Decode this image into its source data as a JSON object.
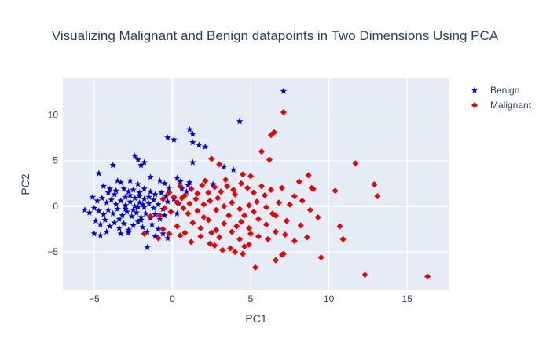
{
  "chart_data": {
    "type": "scatter",
    "title": "Visualizing Malignant and Benign datapoints in Two Dimensions Using PCA",
    "xlabel": "PC1",
    "ylabel": "PC2",
    "xlim": [
      -7,
      17.7
    ],
    "ylim": [
      -9.2,
      14
    ],
    "xticks": [
      -5,
      0,
      5,
      10,
      15
    ],
    "yticks": [
      -5,
      0,
      5,
      10
    ],
    "grid": true,
    "legend_position": "top-right",
    "series": [
      {
        "name": "Benign",
        "marker": "star",
        "color": "#0000dd",
        "points": [
          [
            7.1,
            12.6
          ],
          [
            4.3,
            9.3
          ],
          [
            1.1,
            8.4
          ],
          [
            1.3,
            7.9
          ],
          [
            -0.3,
            7.5
          ],
          [
            0.1,
            7.3
          ],
          [
            1.3,
            7.0
          ],
          [
            1.7,
            6.7
          ],
          [
            2.1,
            6.5
          ],
          [
            -2.4,
            5.5
          ],
          [
            -2.2,
            5.1
          ],
          [
            -1.8,
            4.8
          ],
          [
            -2.0,
            4.5
          ],
          [
            1.3,
            4.8
          ],
          [
            3.3,
            4.3
          ],
          [
            3.9,
            4.0
          ],
          [
            -3.8,
            4.5
          ],
          [
            -4.7,
            3.6
          ],
          [
            -3.5,
            2.8
          ],
          [
            -3.3,
            2.6
          ],
          [
            -2.7,
            2.8
          ],
          [
            -2.2,
            2.4
          ],
          [
            -1.4,
            3.2
          ],
          [
            -0.8,
            2.8
          ],
          [
            -0.5,
            2.5
          ],
          [
            0.3,
            3.1
          ],
          [
            0.5,
            2.7
          ],
          [
            1.0,
            2.3
          ],
          [
            1.1,
            2.6
          ],
          [
            -0.2,
            2.0
          ],
          [
            -4.4,
            2.2
          ],
          [
            -4.0,
            1.9
          ],
          [
            -3.6,
            1.7
          ],
          [
            -3.1,
            1.9
          ],
          [
            -2.8,
            1.6
          ],
          [
            -2.5,
            1.8
          ],
          [
            -2.1,
            1.5
          ],
          [
            -1.8,
            1.9
          ],
          [
            -1.4,
            1.6
          ],
          [
            -1.1,
            1.3
          ],
          [
            -0.7,
            1.5
          ],
          [
            -0.4,
            1.1
          ],
          [
            -5.1,
            1.0
          ],
          [
            -4.8,
            0.6
          ],
          [
            -4.5,
            0.9
          ],
          [
            -4.2,
            0.4
          ],
          [
            -3.9,
            0.7
          ],
          [
            -3.6,
            0.2
          ],
          [
            -3.3,
            0.6
          ],
          [
            -3.0,
            0.1
          ],
          [
            -2.7,
            0.5
          ],
          [
            -2.4,
            0.0
          ],
          [
            -2.1,
            0.4
          ],
          [
            -1.8,
            -0.1
          ],
          [
            -1.5,
            0.3
          ],
          [
            -1.2,
            -0.2
          ],
          [
            -0.9,
            0.2
          ],
          [
            -0.6,
            -0.3
          ],
          [
            -0.3,
            0.5
          ],
          [
            0.1,
            0.8
          ],
          [
            0.4,
            0.3
          ],
          [
            -5.6,
            -0.4
          ],
          [
            -5.3,
            -0.7
          ],
          [
            -5.0,
            -0.2
          ],
          [
            -4.7,
            -0.5
          ],
          [
            -4.4,
            -0.9
          ],
          [
            -4.1,
            -0.4
          ],
          [
            -3.8,
            -0.8
          ],
          [
            -3.5,
            -0.3
          ],
          [
            -3.2,
            -1.0
          ],
          [
            -2.9,
            -0.6
          ],
          [
            -2.6,
            -1.1
          ],
          [
            -2.3,
            -0.7
          ],
          [
            -2.0,
            -1.2
          ],
          [
            -1.7,
            -0.8
          ],
          [
            -1.4,
            -1.3
          ],
          [
            -1.1,
            -0.9
          ],
          [
            -0.8,
            -1.4
          ],
          [
            -0.5,
            -1.0
          ],
          [
            -4.9,
            -1.6
          ],
          [
            -4.6,
            -2.0
          ],
          [
            -4.3,
            -1.5
          ],
          [
            -4.0,
            -2.2
          ],
          [
            -3.7,
            -1.8
          ],
          [
            -3.4,
            -2.4
          ],
          [
            -3.1,
            -1.9
          ],
          [
            -2.8,
            -2.6
          ],
          [
            -2.5,
            -2.1
          ],
          [
            -2.2,
            -1.7
          ],
          [
            -1.9,
            -2.3
          ],
          [
            -1.6,
            -2.8
          ],
          [
            -1.3,
            -2.0
          ],
          [
            -0.9,
            -2.5
          ],
          [
            -0.6,
            -3.0
          ],
          [
            -5.0,
            -3.0
          ],
          [
            -4.6,
            -3.2
          ],
          [
            -4.2,
            -2.8
          ],
          [
            -3.3,
            -3.0
          ],
          [
            -2.8,
            -2.9
          ],
          [
            -1.6,
            -4.5
          ],
          [
            -1.1,
            -3.3
          ],
          [
            -0.3,
            -3.5
          ],
          [
            -3.0,
            1.0
          ],
          [
            -2.7,
            1.2
          ],
          [
            -2.4,
            0.9
          ],
          [
            -2.1,
            1.1
          ],
          [
            -1.8,
            0.8
          ],
          [
            -1.5,
            1.0
          ],
          [
            -1.2,
            0.7
          ],
          [
            -3.7,
            1.3
          ],
          [
            -4.1,
            1.5
          ],
          [
            -2.5,
            -0.4
          ],
          [
            -2.2,
            -0.1
          ],
          [
            -1.9,
            0.2
          ],
          [
            -3.0,
            -0.3
          ],
          [
            -3.4,
            -1.4
          ],
          [
            -2.0,
            -1.5
          ],
          [
            0.6,
            1.9
          ],
          [
            0.9,
            1.6
          ],
          [
            2.6,
            2.4
          ],
          [
            0.3,
            -0.8
          ]
        ]
      },
      {
        "name": "Malignant",
        "marker": "diamond",
        "color": "#ee0000",
        "points": [
          [
            7.1,
            10.3
          ],
          [
            6.5,
            8.1
          ],
          [
            6.3,
            7.8
          ],
          [
            5.7,
            6.0
          ],
          [
            11.7,
            4.7
          ],
          [
            2.5,
            5.2
          ],
          [
            3.0,
            4.6
          ],
          [
            6.2,
            5.1
          ],
          [
            4.5,
            3.5
          ],
          [
            5.0,
            3.3
          ],
          [
            8.7,
            3.4
          ],
          [
            12.9,
            2.4
          ],
          [
            13.1,
            1.1
          ],
          [
            10.4,
            1.7
          ],
          [
            8.1,
            2.7
          ],
          [
            8.9,
            2.0
          ],
          [
            9.0,
            1.9
          ],
          [
            7.8,
            1.1
          ],
          [
            7.0,
            2.0
          ],
          [
            6.3,
            1.8
          ],
          [
            5.7,
            2.2
          ],
          [
            5.2,
            1.5
          ],
          [
            4.8,
            2.0
          ],
          [
            4.4,
            2.5
          ],
          [
            3.9,
            1.8
          ],
          [
            3.5,
            2.2
          ],
          [
            3.1,
            1.6
          ],
          [
            2.7,
            2.1
          ],
          [
            2.3,
            1.5
          ],
          [
            1.9,
            2.3
          ],
          [
            1.6,
            1.4
          ],
          [
            1.2,
            1.9
          ],
          [
            0.8,
            1.2
          ],
          [
            0.5,
            2.2
          ],
          [
            0.1,
            1.0
          ],
          [
            -0.2,
            1.5
          ],
          [
            -0.6,
            0.8
          ],
          [
            8.3,
            0.6
          ],
          [
            7.5,
            0.2
          ],
          [
            6.8,
            0.4
          ],
          [
            6.0,
            -0.1
          ],
          [
            5.4,
            0.5
          ],
          [
            4.9,
            0.1
          ],
          [
            4.3,
            -0.3
          ],
          [
            3.8,
            0.4
          ],
          [
            3.3,
            0.0
          ],
          [
            2.8,
            -0.4
          ],
          [
            2.4,
            0.6
          ],
          [
            2.0,
            0.2
          ],
          [
            1.6,
            -0.5
          ],
          [
            1.1,
            0.3
          ],
          [
            0.7,
            -0.2
          ],
          [
            0.3,
            0.4
          ],
          [
            -0.1,
            -0.6
          ],
          [
            -0.5,
            -0.2
          ],
          [
            -0.8,
            -1.0
          ],
          [
            8.8,
            -0.4
          ],
          [
            9.3,
            -1.2
          ],
          [
            8.2,
            -2.1
          ],
          [
            7.3,
            -1.6
          ],
          [
            6.6,
            -1.0
          ],
          [
            6.0,
            -2.0
          ],
          [
            5.5,
            -1.4
          ],
          [
            4.9,
            -2.4
          ],
          [
            4.4,
            -1.7
          ],
          [
            3.8,
            -2.8
          ],
          [
            3.3,
            -1.9
          ],
          [
            2.8,
            -2.6
          ],
          [
            2.3,
            -1.5
          ],
          [
            1.8,
            -2.4
          ],
          [
            1.3,
            -1.8
          ],
          [
            0.8,
            -2.9
          ],
          [
            0.3,
            -2.2
          ],
          [
            -0.2,
            -3.0
          ],
          [
            -0.6,
            -2.5
          ],
          [
            10.7,
            -2.2
          ],
          [
            10.9,
            -3.6
          ],
          [
            8.6,
            -3.4
          ],
          [
            7.8,
            -3.8
          ],
          [
            7.2,
            -3.1
          ],
          [
            6.6,
            -2.8
          ],
          [
            6.1,
            -3.6
          ],
          [
            5.5,
            -3.3
          ],
          [
            4.9,
            -4.2
          ],
          [
            4.3,
            -3.6
          ],
          [
            3.7,
            -4.6
          ],
          [
            3.0,
            -3.4
          ],
          [
            2.4,
            -4.1
          ],
          [
            1.8,
            -3.3
          ],
          [
            1.2,
            -3.9
          ],
          [
            0.5,
            -3.2
          ],
          [
            7.1,
            -5.2
          ],
          [
            9.5,
            -5.6
          ],
          [
            6.6,
            -5.9
          ],
          [
            5.3,
            -6.7
          ],
          [
            4.5,
            -5.2
          ],
          [
            4.0,
            -5.0
          ],
          [
            2.7,
            -4.3
          ],
          [
            12.3,
            -7.5
          ],
          [
            16.3,
            -7.7
          ],
          [
            -1.8,
            -3.0
          ],
          [
            -1.4,
            -1.1
          ],
          [
            -0.9,
            -3.5
          ],
          [
            7.0,
            -5.3
          ],
          [
            5.9,
            1.2
          ],
          [
            4.0,
            1.3
          ],
          [
            2.0,
            -1.2
          ],
          [
            3.6,
            -1.0
          ],
          [
            4.6,
            -1.0
          ],
          [
            5.2,
            -0.6
          ],
          [
            6.4,
            -0.8
          ],
          [
            1.5,
            0.8
          ],
          [
            2.9,
            0.9
          ],
          [
            3.4,
            2.9
          ],
          [
            4.1,
            -2.2
          ],
          [
            5.0,
            -3.0
          ],
          [
            2.5,
            -2.9
          ],
          [
            1.0,
            -0.8
          ],
          [
            0.6,
            0.9
          ],
          [
            3.2,
            -4.8
          ],
          [
            4.6,
            -4.4
          ],
          [
            2.1,
            2.8
          ]
        ]
      }
    ]
  }
}
